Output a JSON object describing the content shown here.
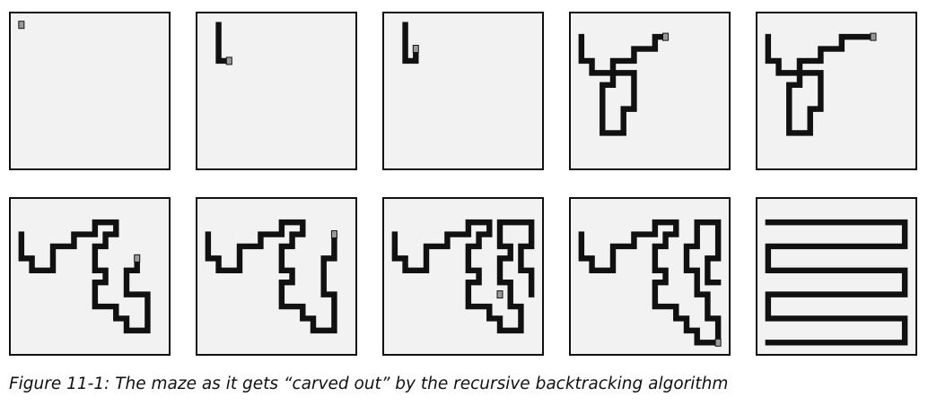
{
  "figure": {
    "caption": "Figure 11-1: The maze as it gets “carved out” by the recursive backtracking algorithm",
    "grid": {
      "cols": 14,
      "rows": 12
    },
    "colors": {
      "wall": "#111111",
      "uncarved": "#f2f2f2",
      "cursor": "#9a9a9a"
    },
    "steps": [
      {
        "step": 1,
        "path": [
          [
            0,
            0
          ]
        ],
        "cursor": [
          0,
          0
        ]
      },
      {
        "step": 2,
        "path": [
          [
            1,
            0
          ],
          [
            1,
            3
          ],
          [
            2,
            3
          ]
        ],
        "cursor": [
          2,
          3
        ]
      },
      {
        "step": 3,
        "path": [
          [
            1,
            0
          ],
          [
            1,
            3
          ],
          [
            2,
            3
          ],
          [
            2,
            2
          ]
        ],
        "cursor": [
          2,
          2
        ]
      },
      {
        "step": 4,
        "path": [
          [
            0,
            1
          ],
          [
            0,
            3
          ],
          [
            1,
            3
          ],
          [
            1,
            4
          ],
          [
            3,
            4
          ],
          [
            3,
            5
          ],
          [
            2,
            5
          ],
          [
            2,
            9
          ],
          [
            4,
            9
          ],
          [
            4,
            7
          ],
          [
            5,
            7
          ],
          [
            5,
            4
          ],
          [
            3,
            4
          ],
          [
            3,
            3
          ],
          [
            5,
            3
          ],
          [
            5,
            2
          ],
          [
            7,
            2
          ],
          [
            7,
            1
          ],
          [
            8,
            1
          ]
        ],
        "cursor": [
          8,
          1
        ]
      },
      {
        "step": 5,
        "path": [
          [
            0,
            1
          ],
          [
            0,
            3
          ],
          [
            1,
            3
          ],
          [
            1,
            4
          ],
          [
            3,
            4
          ],
          [
            3,
            5
          ],
          [
            2,
            5
          ],
          [
            2,
            9
          ],
          [
            4,
            9
          ],
          [
            4,
            7
          ],
          [
            5,
            7
          ],
          [
            5,
            4
          ],
          [
            3,
            4
          ],
          [
            3,
            3
          ],
          [
            5,
            3
          ],
          [
            5,
            2
          ],
          [
            7,
            2
          ],
          [
            7,
            1
          ],
          [
            10,
            1
          ]
        ],
        "cursor": [
          10,
          1
        ]
      },
      {
        "step": 6,
        "path": [
          [
            0,
            2
          ],
          [
            0,
            4
          ],
          [
            1,
            4
          ],
          [
            1,
            5
          ],
          [
            3,
            5
          ],
          [
            3,
            3
          ],
          [
            5,
            3
          ],
          [
            5,
            2
          ],
          [
            7,
            2
          ],
          [
            7,
            1
          ],
          [
            9,
            1
          ],
          [
            9,
            2
          ],
          [
            8,
            2
          ],
          [
            8,
            3
          ],
          [
            7,
            3
          ],
          [
            7,
            5
          ],
          [
            8,
            5
          ],
          [
            8,
            6
          ],
          [
            7,
            6
          ],
          [
            7,
            8
          ],
          [
            9,
            8
          ],
          [
            9,
            9
          ],
          [
            10,
            9
          ],
          [
            10,
            10
          ],
          [
            12,
            10
          ],
          [
            12,
            7
          ],
          [
            10,
            7
          ],
          [
            10,
            5
          ],
          [
            11,
            5
          ],
          [
            11,
            4
          ]
        ],
        "cursor": [
          11,
          4
        ]
      },
      {
        "step": 7,
        "path": [
          [
            0,
            2
          ],
          [
            0,
            4
          ],
          [
            1,
            4
          ],
          [
            1,
            5
          ],
          [
            3,
            5
          ],
          [
            3,
            3
          ],
          [
            5,
            3
          ],
          [
            5,
            2
          ],
          [
            7,
            2
          ],
          [
            7,
            1
          ],
          [
            9,
            1
          ],
          [
            9,
            2
          ],
          [
            8,
            2
          ],
          [
            8,
            3
          ],
          [
            7,
            3
          ],
          [
            7,
            5
          ],
          [
            8,
            5
          ],
          [
            8,
            6
          ],
          [
            7,
            6
          ],
          [
            7,
            8
          ],
          [
            9,
            8
          ],
          [
            9,
            9
          ],
          [
            10,
            9
          ],
          [
            10,
            10
          ],
          [
            12,
            10
          ],
          [
            12,
            7
          ],
          [
            11,
            7
          ],
          [
            11,
            4
          ],
          [
            12,
            4
          ],
          [
            12,
            2
          ]
        ],
        "cursor": [
          12,
          2
        ]
      },
      {
        "step": 8,
        "path": [
          [
            0,
            2
          ],
          [
            0,
            4
          ],
          [
            1,
            4
          ],
          [
            1,
            5
          ],
          [
            3,
            5
          ],
          [
            3,
            3
          ],
          [
            5,
            3
          ],
          [
            5,
            2
          ],
          [
            7,
            2
          ],
          [
            7,
            1
          ],
          [
            9,
            1
          ],
          [
            9,
            2
          ],
          [
            8,
            2
          ],
          [
            8,
            3
          ],
          [
            7,
            3
          ],
          [
            7,
            5
          ],
          [
            8,
            5
          ],
          [
            8,
            6
          ],
          [
            7,
            6
          ],
          [
            7,
            8
          ],
          [
            9,
            8
          ],
          [
            9,
            9
          ],
          [
            10,
            9
          ],
          [
            10,
            10
          ],
          [
            12,
            10
          ],
          [
            12,
            8
          ],
          [
            11,
            8
          ],
          [
            11,
            6
          ],
          [
            10,
            6
          ],
          [
            10,
            4
          ],
          [
            11,
            4
          ],
          [
            11,
            3
          ],
          [
            10,
            3
          ],
          [
            10,
            1
          ],
          [
            13,
            1
          ],
          [
            13,
            3
          ],
          [
            12,
            3
          ],
          [
            12,
            5
          ],
          [
            13,
            5
          ],
          [
            13,
            7
          ]
        ],
        "cursor": [
          10,
          7
        ]
      },
      {
        "step": 9,
        "path": [
          [
            0,
            2
          ],
          [
            0,
            4
          ],
          [
            1,
            4
          ],
          [
            1,
            5
          ],
          [
            3,
            5
          ],
          [
            3,
            3
          ],
          [
            5,
            3
          ],
          [
            5,
            2
          ],
          [
            7,
            2
          ],
          [
            7,
            1
          ],
          [
            9,
            1
          ],
          [
            9,
            2
          ],
          [
            8,
            2
          ],
          [
            8,
            3
          ],
          [
            7,
            3
          ],
          [
            7,
            5
          ],
          [
            8,
            5
          ],
          [
            8,
            6
          ],
          [
            7,
            6
          ],
          [
            7,
            8
          ],
          [
            9,
            8
          ],
          [
            9,
            9
          ],
          [
            10,
            9
          ],
          [
            10,
            10
          ],
          [
            11,
            10
          ],
          [
            11,
            11
          ],
          [
            13,
            11
          ],
          [
            13,
            9
          ],
          [
            12,
            9
          ],
          [
            12,
            7
          ],
          [
            11,
            7
          ],
          [
            11,
            5
          ],
          [
            10,
            5
          ],
          [
            10,
            3
          ],
          [
            11,
            3
          ],
          [
            11,
            1
          ],
          [
            13,
            1
          ],
          [
            13,
            4
          ],
          [
            12,
            4
          ],
          [
            12,
            6
          ],
          [
            13,
            6
          ]
        ],
        "cursor": [
          13,
          11
        ]
      },
      {
        "step": 10,
        "path": [
          [
            0,
            1
          ],
          [
            13,
            1
          ],
          [
            13,
            3
          ],
          [
            0,
            3
          ],
          [
            0,
            5
          ],
          [
            13,
            5
          ],
          [
            13,
            7
          ],
          [
            0,
            7
          ],
          [
            0,
            9
          ],
          [
            13,
            9
          ],
          [
            13,
            11
          ],
          [
            0,
            11
          ]
        ],
        "cursor": null
      }
    ]
  }
}
